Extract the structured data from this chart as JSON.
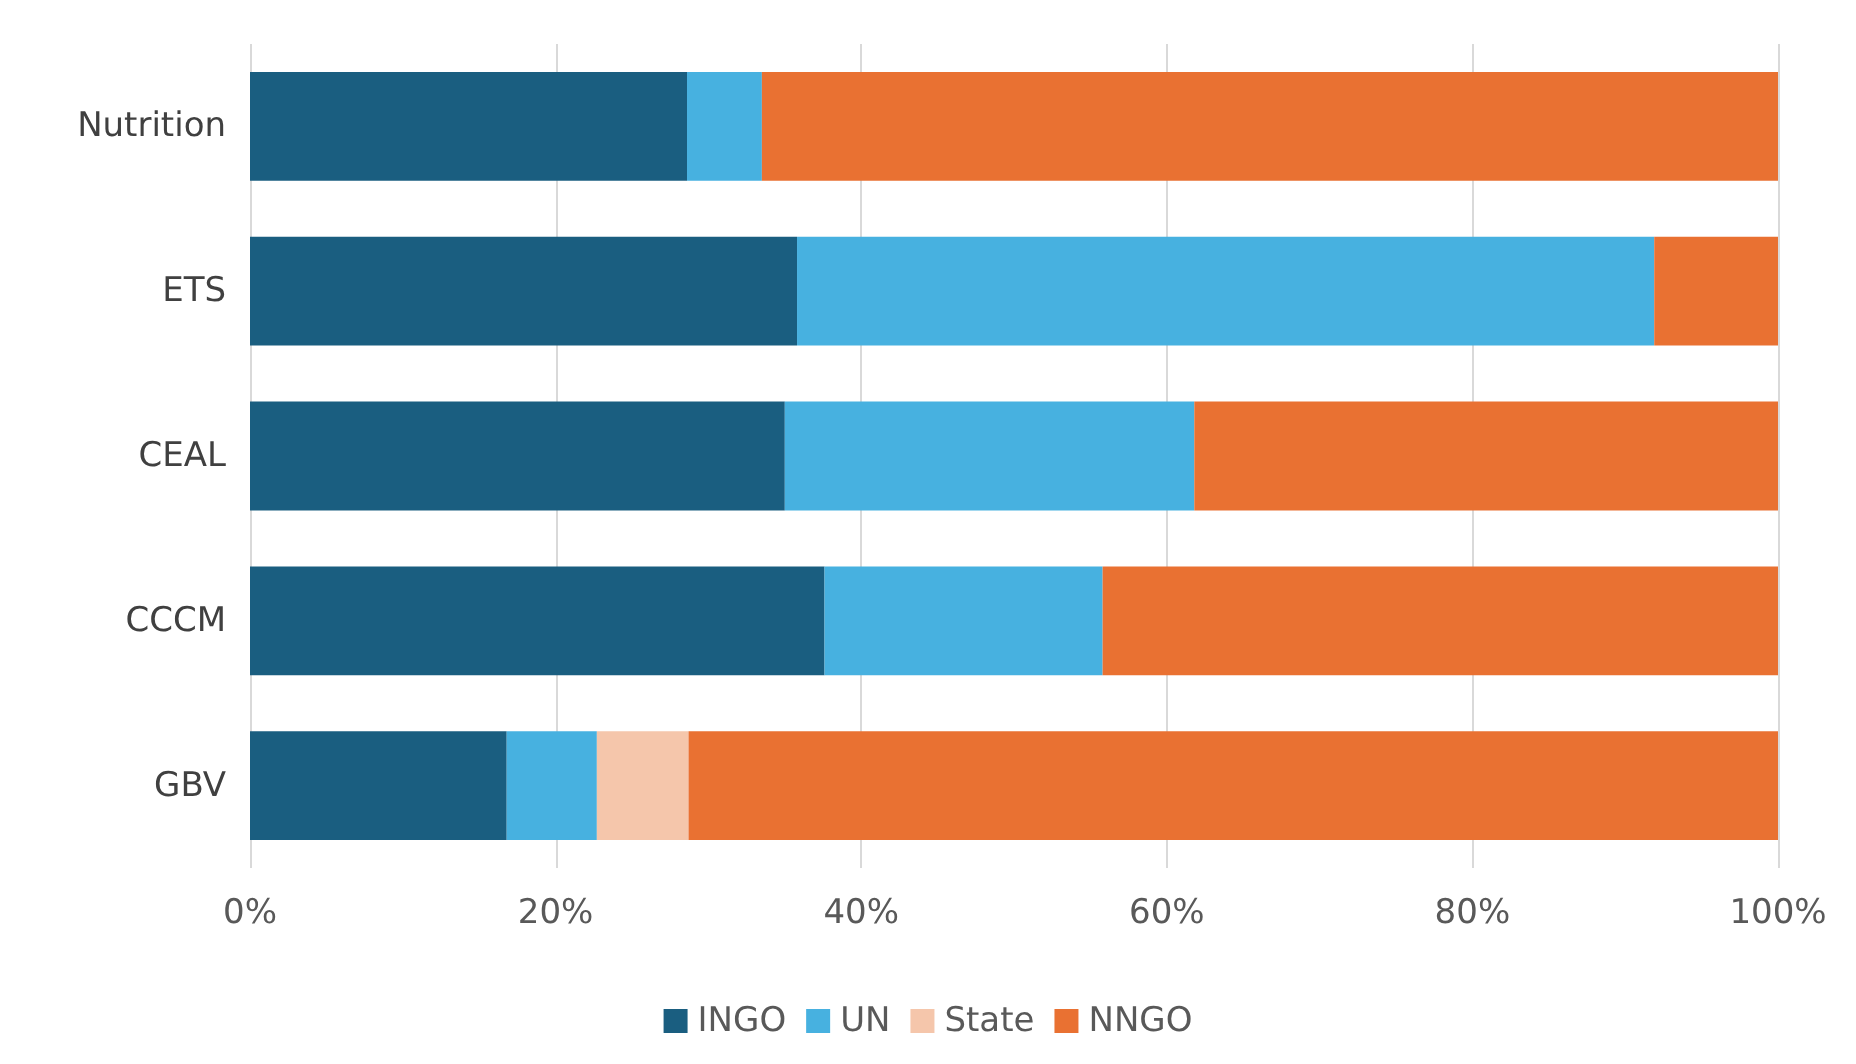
{
  "chart_data": {
    "type": "bar",
    "orientation": "horizontal",
    "stacked": true,
    "categories": [
      "Nutrition",
      "ETS",
      "CEAL",
      "CCCM",
      "GBV"
    ],
    "series": [
      {
        "name": "INGO",
        "color": "#1a5e80",
        "values": [
          28.6,
          35.8,
          35.0,
          37.6,
          16.8
        ]
      },
      {
        "name": "UN",
        "color": "#47b1e0",
        "values": [
          4.9,
          56.1,
          26.8,
          18.2,
          5.9
        ]
      },
      {
        "name": "State",
        "color": "#f5c6ab",
        "values": [
          0,
          0,
          0,
          0,
          6.0
        ]
      },
      {
        "name": "NNGO",
        "color": "#e97132",
        "values": [
          66.5,
          8.1,
          38.2,
          44.2,
          71.3
        ]
      }
    ],
    "xlim": [
      0,
      100
    ],
    "xticks": [
      {
        "value": 0,
        "label": "0%"
      },
      {
        "value": 20,
        "label": "20%"
      },
      {
        "value": 40,
        "label": "40%"
      },
      {
        "value": 60,
        "label": "60%"
      },
      {
        "value": 80,
        "label": "80%"
      },
      {
        "value": 100,
        "label": "100%"
      }
    ],
    "grid": "x",
    "legend": "bottom"
  }
}
